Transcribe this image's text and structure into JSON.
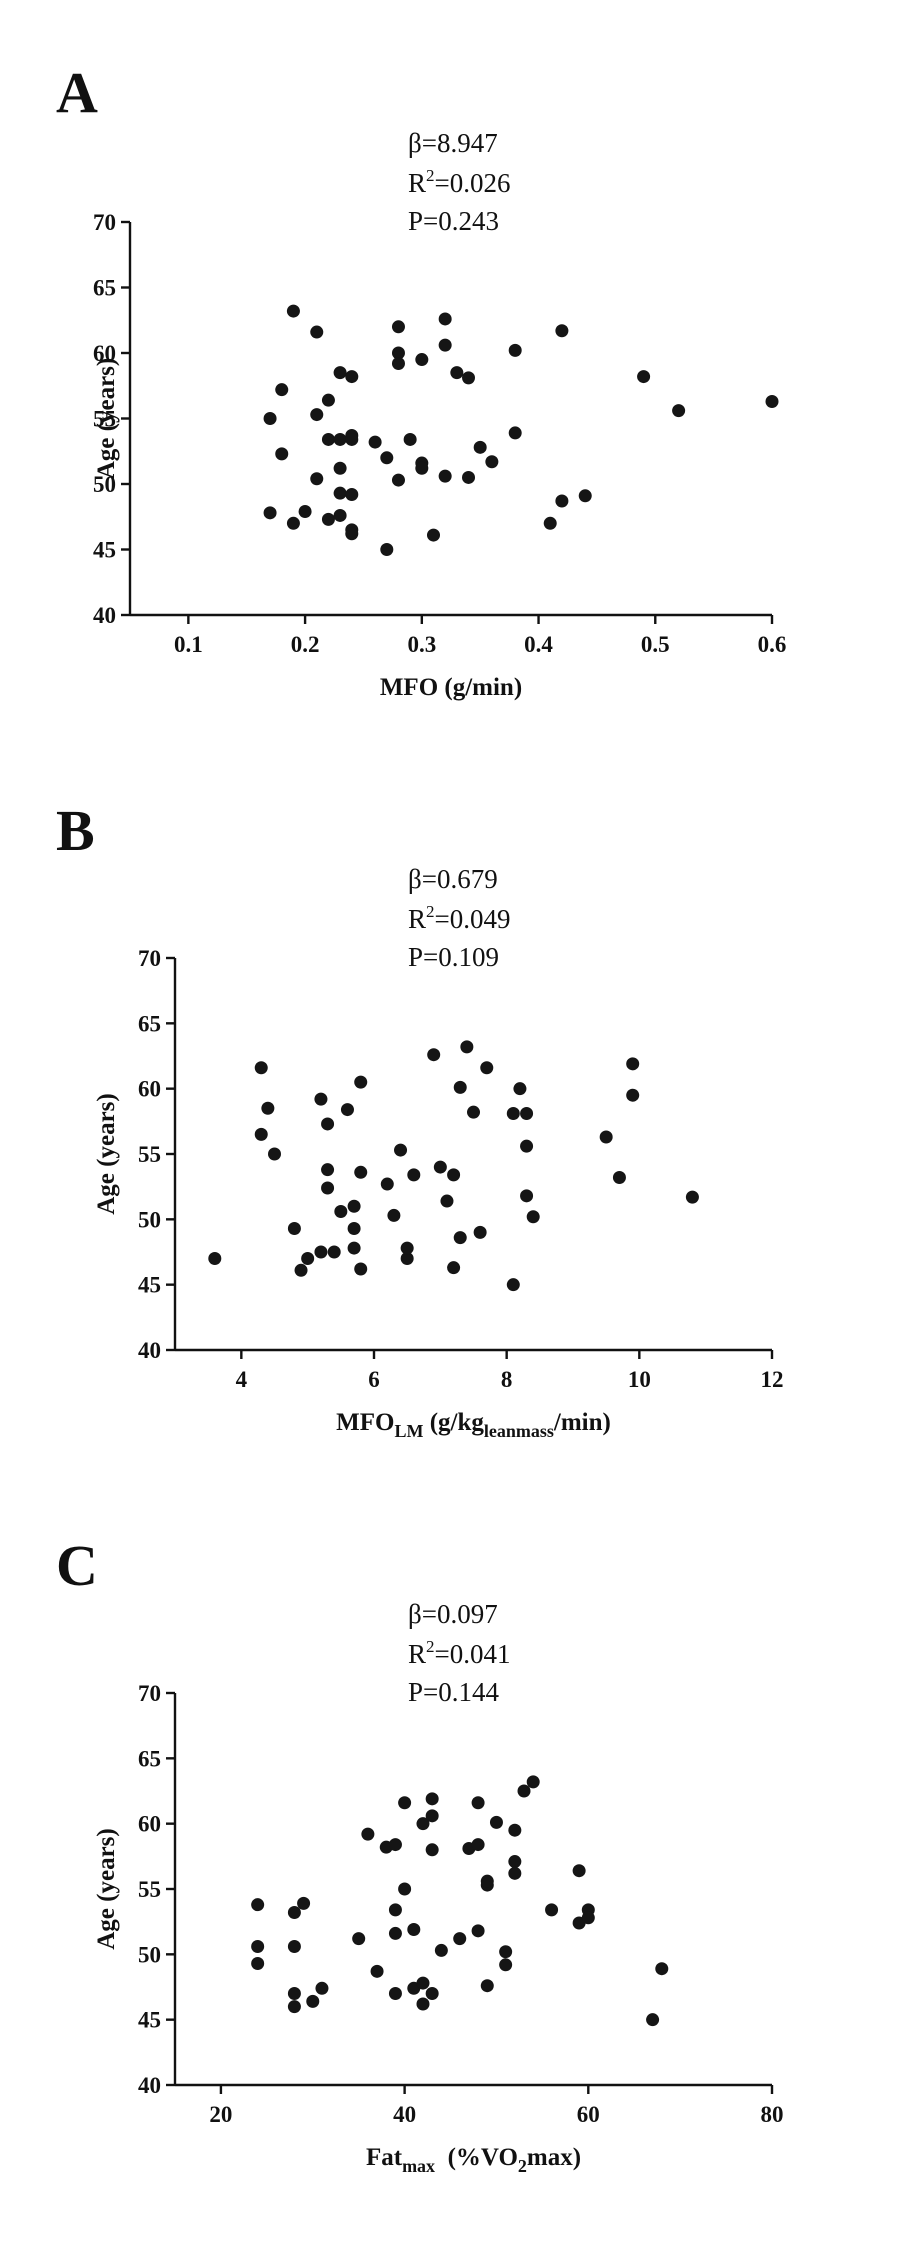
{
  "chart_data": [
    {
      "type": "scatter",
      "panel": "A",
      "stats": {
        "beta": "β=8.947",
        "r2_prefix": "R",
        "r2_sup": "2",
        "r2_value": "=0.026",
        "p": "P=0.243"
      },
      "xlabel": "MFO (g/min)",
      "xlabel_parts": [
        {
          "text": "MFO (g/min)",
          "sub": false
        }
      ],
      "ylabel": "Age (years)",
      "xlim": [
        0.05,
        0.6
      ],
      "ylim": [
        40,
        70
      ],
      "xticks": [
        0.1,
        0.2,
        0.3,
        0.4,
        0.5,
        0.6
      ],
      "xtick_labels": [
        "0.1",
        "0.2",
        "0.3",
        "0.4",
        "0.5",
        "0.6"
      ],
      "yticks": [
        40,
        45,
        50,
        55,
        60,
        65,
        70
      ],
      "ytick_labels": [
        "40",
        "45",
        "50",
        "55",
        "60",
        "65",
        "70"
      ],
      "points": [
        [
          0.17,
          47.8
        ],
        [
          0.17,
          55.0
        ],
        [
          0.18,
          57.2
        ],
        [
          0.18,
          52.3
        ],
        [
          0.19,
          63.2
        ],
        [
          0.19,
          47.0
        ],
        [
          0.2,
          47.9
        ],
        [
          0.21,
          61.6
        ],
        [
          0.21,
          55.3
        ],
        [
          0.21,
          50.4
        ],
        [
          0.22,
          56.4
        ],
        [
          0.22,
          53.4
        ],
        [
          0.22,
          47.3
        ],
        [
          0.23,
          58.5
        ],
        [
          0.23,
          53.4
        ],
        [
          0.23,
          51.2
        ],
        [
          0.23,
          49.3
        ],
        [
          0.23,
          47.6
        ],
        [
          0.24,
          58.2
        ],
        [
          0.24,
          53.7
        ],
        [
          0.24,
          53.4
        ],
        [
          0.24,
          49.2
        ],
        [
          0.24,
          46.5
        ],
        [
          0.24,
          46.2
        ],
        [
          0.26,
          53.2
        ],
        [
          0.27,
          52.0
        ],
        [
          0.27,
          45.0
        ],
        [
          0.28,
          62.0
        ],
        [
          0.28,
          60.0
        ],
        [
          0.28,
          59.2
        ],
        [
          0.28,
          50.3
        ],
        [
          0.29,
          53.4
        ],
        [
          0.3,
          59.5
        ],
        [
          0.3,
          51.6
        ],
        [
          0.3,
          51.2
        ],
        [
          0.31,
          46.1
        ],
        [
          0.32,
          62.6
        ],
        [
          0.32,
          60.6
        ],
        [
          0.32,
          50.6
        ],
        [
          0.33,
          58.5
        ],
        [
          0.34,
          58.1
        ],
        [
          0.34,
          50.5
        ],
        [
          0.35,
          52.8
        ],
        [
          0.36,
          51.7
        ],
        [
          0.38,
          60.2
        ],
        [
          0.38,
          53.9
        ],
        [
          0.41,
          47.0
        ],
        [
          0.42,
          61.7
        ],
        [
          0.42,
          48.7
        ],
        [
          0.44,
          49.1
        ],
        [
          0.49,
          58.2
        ],
        [
          0.52,
          55.6
        ],
        [
          0.6,
          56.3
        ]
      ]
    },
    {
      "type": "scatter",
      "panel": "B",
      "stats": {
        "beta": "β=0.679",
        "r2_prefix": "R",
        "r2_sup": "2",
        "r2_value": "=0.049",
        "p": "P=0.109"
      },
      "xlabel": "MFOLM (g/kgleanmass/min)",
      "xlabel_parts": [
        {
          "text": "MFO",
          "sub": false
        },
        {
          "text": "LM",
          "sub": true
        },
        {
          "text": " (g/kg",
          "sub": false
        },
        {
          "text": "leanmass",
          "sub": true
        },
        {
          "text": "/min)",
          "sub": false
        }
      ],
      "ylabel": "Age (years)",
      "xlim": [
        3,
        12
      ],
      "ylim": [
        40,
        70
      ],
      "xticks": [
        4,
        6,
        8,
        10,
        12
      ],
      "xtick_labels": [
        "4",
        "6",
        "8",
        "10",
        "12"
      ],
      "yticks": [
        40,
        45,
        50,
        55,
        60,
        65,
        70
      ],
      "ytick_labels": [
        "40",
        "45",
        "50",
        "55",
        "60",
        "65",
        "70"
      ],
      "points": [
        [
          3.6,
          47.0
        ],
        [
          4.3,
          61.6
        ],
        [
          4.3,
          56.5
        ],
        [
          4.4,
          58.5
        ],
        [
          4.5,
          55.0
        ],
        [
          4.8,
          49.3
        ],
        [
          4.9,
          46.1
        ],
        [
          5.0,
          47.0
        ],
        [
          5.2,
          47.5
        ],
        [
          5.2,
          59.2
        ],
        [
          5.3,
          57.3
        ],
        [
          5.3,
          53.8
        ],
        [
          5.3,
          52.4
        ],
        [
          5.4,
          47.5
        ],
        [
          5.5,
          50.6
        ],
        [
          5.6,
          58.4
        ],
        [
          5.7,
          51.0
        ],
        [
          5.7,
          49.3
        ],
        [
          5.7,
          47.8
        ],
        [
          5.8,
          46.2
        ],
        [
          5.8,
          60.5
        ],
        [
          5.8,
          53.6
        ],
        [
          6.2,
          52.7
        ],
        [
          6.3,
          50.3
        ],
        [
          6.4,
          55.3
        ],
        [
          6.5,
          47.0
        ],
        [
          6.5,
          47.8
        ],
        [
          6.6,
          53.4
        ],
        [
          6.9,
          62.6
        ],
        [
          7.0,
          54.0
        ],
        [
          7.1,
          51.4
        ],
        [
          7.2,
          53.4
        ],
        [
          7.2,
          46.3
        ],
        [
          7.3,
          48.6
        ],
        [
          7.3,
          60.1
        ],
        [
          7.4,
          63.2
        ],
        [
          7.5,
          58.2
        ],
        [
          7.6,
          49.0
        ],
        [
          7.7,
          61.6
        ],
        [
          8.1,
          45.0
        ],
        [
          8.1,
          58.1
        ],
        [
          8.2,
          60.0
        ],
        [
          8.3,
          58.1
        ],
        [
          8.3,
          51.8
        ],
        [
          8.3,
          55.6
        ],
        [
          8.4,
          50.2
        ],
        [
          9.5,
          56.3
        ],
        [
          9.7,
          53.2
        ],
        [
          9.9,
          61.9
        ],
        [
          9.9,
          59.5
        ],
        [
          10.8,
          51.7
        ]
      ]
    },
    {
      "type": "scatter",
      "panel": "C",
      "stats": {
        "beta": "β=0.097",
        "r2_prefix": "R",
        "r2_sup": "2",
        "r2_value": "=0.041",
        "p": "P=0.144"
      },
      "xlabel": "Fatmax (%VO2max)",
      "xlabel_parts": [
        {
          "text": "Fat",
          "sub": false
        },
        {
          "text": "max",
          "sub": true
        },
        {
          "text": "  (%VO",
          "sub": false
        },
        {
          "text": "2",
          "sub": true
        },
        {
          "text": "max)",
          "sub": false
        }
      ],
      "ylabel": "Age (years)",
      "xlim": [
        15,
        80
      ],
      "ylim": [
        40,
        70
      ],
      "xticks": [
        20,
        40,
        60,
        80
      ],
      "xtick_labels": [
        "20",
        "40",
        "60",
        "80"
      ],
      "yticks": [
        40,
        45,
        50,
        55,
        60,
        65,
        70
      ],
      "ytick_labels": [
        "40",
        "45",
        "50",
        "55",
        "60",
        "65",
        "70"
      ],
      "points": [
        [
          24,
          53.8
        ],
        [
          24,
          50.6
        ],
        [
          24,
          49.3
        ],
        [
          28,
          53.2
        ],
        [
          28,
          50.6
        ],
        [
          28,
          47.0
        ],
        [
          28,
          46.0
        ],
        [
          29,
          53.9
        ],
        [
          30,
          46.4
        ],
        [
          31,
          47.4
        ],
        [
          35,
          51.2
        ],
        [
          36,
          59.2
        ],
        [
          37,
          48.7
        ],
        [
          38,
          58.2
        ],
        [
          39,
          58.4
        ],
        [
          39,
          53.4
        ],
        [
          39,
          51.6
        ],
        [
          39,
          47.0
        ],
        [
          40,
          61.6
        ],
        [
          40,
          55.0
        ],
        [
          41,
          51.9
        ],
        [
          41,
          47.4
        ],
        [
          42,
          60.0
        ],
        [
          42,
          47.8
        ],
        [
          42,
          46.2
        ],
        [
          43,
          61.9
        ],
        [
          43,
          60.6
        ],
        [
          43,
          58.0
        ],
        [
          43,
          47.0
        ],
        [
          44,
          50.3
        ],
        [
          46,
          51.2
        ],
        [
          47,
          58.1
        ],
        [
          48,
          61.6
        ],
        [
          48,
          58.4
        ],
        [
          48,
          51.8
        ],
        [
          49,
          55.3
        ],
        [
          49,
          55.6
        ],
        [
          49,
          47.6
        ],
        [
          50,
          60.1
        ],
        [
          51,
          50.2
        ],
        [
          51,
          49.2
        ],
        [
          52,
          59.5
        ],
        [
          52,
          57.1
        ],
        [
          52,
          56.2
        ],
        [
          53,
          62.5
        ],
        [
          54,
          63.2
        ],
        [
          56,
          53.4
        ],
        [
          59,
          56.4
        ],
        [
          59,
          52.4
        ],
        [
          60,
          53.4
        ],
        [
          60,
          52.8
        ],
        [
          67,
          45.0
        ],
        [
          68,
          48.9
        ]
      ]
    }
  ]
}
